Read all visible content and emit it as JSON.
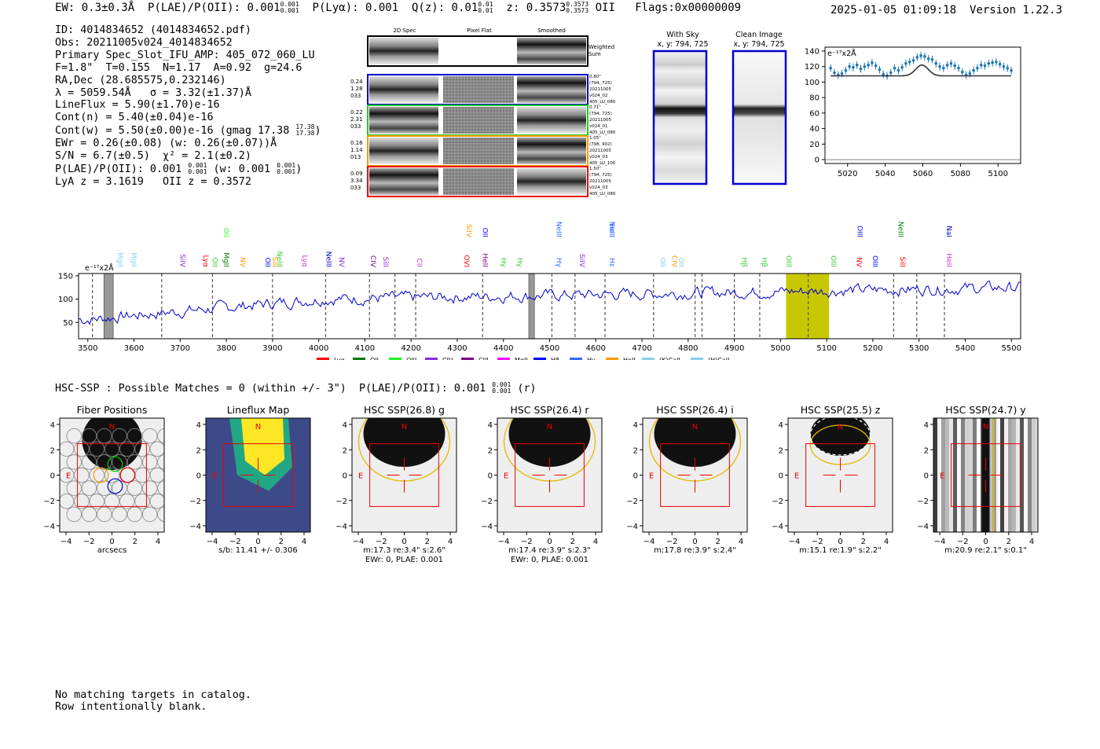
{
  "header": {
    "ew": "EW: 0.3±0.3Å",
    "plae_label": "P(LAE)/P(OII): 0.001",
    "plae_hi": "0.001",
    "plae_lo": "0.001",
    "plya": "P(Lyα): 0.001",
    "qz_label": "Q(z): 0.01",
    "qz_hi": "0.01",
    "qz_lo": "0.01",
    "z_label": "z: 0.3573",
    "z_hi": "0.3573",
    "z_lo": "0.3573",
    "z_line": "OII",
    "flags": "Flags:0x00000009",
    "datetime": "2025-01-05 01:09:18",
    "version": "Version 1.22.3"
  },
  "info": {
    "l1": "ID: 4014834652 (4014834652.pdf)",
    "l2": "Obs: 20211005v024_4014834652",
    "l3": "Primary Spec_Slot_IFU_AMP: 405_072_060_LU",
    "l4": "F=1.8\"  T=0.155  N=1.17  A=0.92  g=24.6",
    "l5": "RA,Dec (28.685575,0.232146)",
    "l6": "λ = 5059.54Å   σ = 3.32(±1.37)Å",
    "l7": "LineFlux = 5.90(±1.70)e-16",
    "l8": "Cont(n) = 5.40(±0.04)e-16",
    "l9": "Cont(w) = 5.50(±0.00)e-16 (gmag 17.38",
    "l9_hi": "17.38",
    "l9_lo": "17.38",
    "l9_end": ")",
    "l10": "EWr = 0.26(±0.08) (w: 0.26(±0.07))Å",
    "l11": "S/N = 6.7(±0.5)  χ² = 2.1(±0.2)",
    "l12a": "P(LAE)/P(OII): 0.001",
    "l12_hi": "0.001",
    "l12_lo": "0.001",
    "l12b": " (w: 0.001",
    "l12_hi2": "0.001",
    "l12_lo2": "0.001",
    "l12_end": ")",
    "l13": "LyA z = 3.1619   OII z = 0.3572"
  },
  "cutouts": {
    "col_2d": "2D Spec",
    "col_flat": "Pixel Flat",
    "col_smooth": "Smoothed",
    "weighted_label": "Weighted",
    "weighted_label2": "Sum",
    "rows": [
      {
        "l1": "0.24",
        "l2": "1.28",
        "l3": "033",
        "border": "#0000cc",
        "r1": "0.80\"",
        "r2": "(794, 725)",
        "r3": "20211005",
        "r4": "v024_02",
        "r5": "405_LU_080"
      },
      {
        "l1": "0.22",
        "l2": "2.31",
        "l3": "033",
        "border": "#22cc22",
        "r1": "0.71\"",
        "r2": "(794, 725)",
        "r3": "20211005",
        "r4": "v024_01",
        "r5": "405_LU_080"
      },
      {
        "l1": "0.16",
        "l2": "1.14",
        "l3": "013",
        "border": "#ff9900",
        "r1": "1.05\"",
        "r2": "(798, 902)",
        "r3": "20211005",
        "r4": "v024_03",
        "r5": "405_LU_100"
      },
      {
        "l1": "0.09",
        "l2": "3.34",
        "l3": "033",
        "border": "#ee0000",
        "r1": "1.50\"",
        "r2": "(794, 725)",
        "r3": "20211005",
        "r4": "v024_03",
        "r5": "405_LU_080"
      }
    ]
  },
  "sky": {
    "with_sky": "With Sky",
    "with_sky_xy": "x, y: 794, 725",
    "clean": "Clean Image",
    "clean_xy": "x, y: 794, 725"
  },
  "chart_data": [
    {
      "type": "line",
      "ylabel_top": "e⁻¹⁷x2Å",
      "xlim": [
        5008,
        5112
      ],
      "ylim": [
        -5,
        145
      ],
      "xticks": [
        5020,
        5040,
        5060,
        5080,
        5100
      ],
      "yticks": [
        0,
        20,
        40,
        60,
        80,
        100,
        120,
        140
      ],
      "series": [
        {
          "kind": "points-with-errors",
          "color": "#1f77b4",
          "x": [
            5011,
            5013,
            5015,
            5017,
            5019,
            5021,
            5023,
            5025,
            5027,
            5029,
            5031,
            5033,
            5035,
            5037,
            5039,
            5041,
            5043,
            5045,
            5047,
            5049,
            5051,
            5053,
            5055,
            5057,
            5059,
            5061,
            5063,
            5065,
            5067,
            5069,
            5071,
            5073,
            5075,
            5077,
            5079,
            5081,
            5083,
            5085,
            5087,
            5089,
            5091,
            5093,
            5095,
            5097,
            5099,
            5101,
            5103,
            5105,
            5107
          ],
          "y": [
            118,
            112,
            109,
            111,
            115,
            120,
            119,
            122,
            117,
            120,
            122,
            125,
            121,
            116,
            110,
            108,
            112,
            118,
            115,
            119,
            124,
            126,
            128,
            132,
            134,
            133,
            130,
            129,
            124,
            120,
            118,
            122,
            124,
            121,
            118,
            113,
            109,
            111,
            115,
            118,
            122,
            121,
            124,
            125,
            126,
            123,
            120,
            118,
            115
          ],
          "err": 5
        },
        {
          "kind": "model",
          "color": "#333333",
          "x0": 5059.54,
          "sigma": 3.32,
          "baseline": 108,
          "amp": 14
        }
      ]
    },
    {
      "type": "line",
      "ylabel_top": "e⁻¹⁷x2Å",
      "xlim": [
        3480,
        5520
      ],
      "ylim": [
        15,
        155
      ],
      "xticks": [
        3500,
        3600,
        3700,
        3800,
        3900,
        4000,
        4100,
        4200,
        4300,
        4400,
        4500,
        4600,
        4700,
        4800,
        4900,
        5000,
        5100,
        5200,
        5300,
        5400,
        5500
      ],
      "yticks": [
        50,
        100,
        150
      ],
      "highlight": {
        "x0": 5012,
        "x1": 5105,
        "color": "#c8c800"
      },
      "hatched": [
        {
          "x0": 3535,
          "x1": 3555
        },
        {
          "x0": 4455,
          "x1": 4467
        }
      ],
      "vlines": [
        3510,
        3660,
        3770,
        3900,
        4015,
        4110,
        4165,
        4210,
        4355,
        4505,
        4555,
        4620,
        4725,
        4815,
        4830,
        4900,
        4955,
        5060,
        5245,
        5295,
        5355
      ],
      "line_labels": [
        {
          "t": "MgII",
          "x": 3560,
          "c": "#87ceeb",
          "row": 2
        },
        {
          "t": "MgII",
          "x": 3590,
          "c": "#87ceeb",
          "row": 2
        },
        {
          "t": "SiIV",
          "x": 3695,
          "c": "#8a2be2",
          "row": 2
        },
        {
          "t": "Lyα",
          "x": 3745,
          "c": "#ff0000",
          "row": 2
        },
        {
          "t": "OII",
          "x": 3765,
          "c": "#33cc33",
          "row": 2
        },
        {
          "t": "MgII",
          "x": 3790,
          "c": "#008000",
          "row": 2
        },
        {
          "t": "OII",
          "x": 3790,
          "c": "#33ff33",
          "row": 0
        },
        {
          "t": "NV",
          "x": 3825,
          "c": "#ff9900",
          "row": 2
        },
        {
          "t": "OII",
          "x": 3880,
          "c": "#0000ff",
          "row": 2
        },
        {
          "t": "NeIII",
          "x": 3905,
          "c": "#33cc33",
          "row": 2
        },
        {
          "t": "SiII",
          "x": 3895,
          "c": "#ff9900",
          "row": 2
        },
        {
          "t": "Lyα",
          "x": 3960,
          "c": "#cc33cc",
          "row": 2
        },
        {
          "t": "NeIII",
          "x": 4012,
          "c": "#0000cc",
          "row": 2
        },
        {
          "t": "NV",
          "x": 4040,
          "c": "#8a2be2",
          "row": 2
        },
        {
          "t": "CIV",
          "x": 4108,
          "c": "#800080",
          "row": 2
        },
        {
          "t": "SiII",
          "x": 4135,
          "c": "#8a2be2",
          "row": 2
        },
        {
          "t": "CII",
          "x": 4208,
          "c": "#cc33cc",
          "row": 2
        },
        {
          "t": "OVI",
          "x": 4310,
          "c": "#ff0000",
          "row": 2
        },
        {
          "t": "SiIV",
          "x": 4315,
          "c": "#ff9900",
          "row": 0
        },
        {
          "t": "OII",
          "x": 4350,
          "c": "#0000ff",
          "row": 0
        },
        {
          "t": "HeII",
          "x": 4350,
          "c": "#800080",
          "row": 2
        },
        {
          "t": "Hγ",
          "x": 4390,
          "c": "#33cc33",
          "row": 2
        },
        {
          "t": "Hγ",
          "x": 4425,
          "c": "#33cc33",
          "row": 2
        },
        {
          "t": "NeIII",
          "x": 4510,
          "c": "#3366ff",
          "row": 0
        },
        {
          "t": "Hγ",
          "x": 4510,
          "c": "#3366ff",
          "row": 2
        },
        {
          "t": "SiIV",
          "x": 4560,
          "c": "#8a2be2",
          "row": 2
        },
        {
          "t": "HeII",
          "x": 4625,
          "c": "#3366ff",
          "row": 0
        },
        {
          "t": "NeIII",
          "x": 4625,
          "c": "#3366ff",
          "row": 0
        },
        {
          "t": "Hε",
          "x": 4625,
          "c": "#3366ff",
          "row": 2
        },
        {
          "t": "OII",
          "x": 4735,
          "c": "#87ceeb",
          "row": 2
        },
        {
          "t": "CIV",
          "x": 4760,
          "c": "#ff9900",
          "row": 2
        },
        {
          "t": "OII",
          "x": 4775,
          "c": "#87ceeb",
          "row": 2
        },
        {
          "t": "Hβ",
          "x": 4912,
          "c": "#33cc33",
          "row": 2
        },
        {
          "t": "Hβ",
          "x": 4955,
          "c": "#33cc33",
          "row": 2
        },
        {
          "t": "OIII",
          "x": 5008,
          "c": "#33cc33",
          "row": 2
        },
        {
          "t": "OIII",
          "x": 5105,
          "c": "#33cc33",
          "row": 2
        },
        {
          "t": "NV",
          "x": 5160,
          "c": "#ff0000",
          "row": 2
        },
        {
          "t": "OIII",
          "x": 5162,
          "c": "#0000ff",
          "row": 0
        },
        {
          "t": "OIII",
          "x": 5195,
          "c": "#0000ff",
          "row": 2
        },
        {
          "t": "NeIII",
          "x": 5250,
          "c": "#008000",
          "row": 0
        },
        {
          "t": "SiII",
          "x": 5255,
          "c": "#ff0000",
          "row": 2
        },
        {
          "t": "NaI",
          "x": 5355,
          "c": "#0000cc",
          "row": 0
        },
        {
          "t": "HeII",
          "x": 5355,
          "c": "#cc33cc",
          "row": 2
        }
      ],
      "legend": [
        {
          "name": "Lyα",
          "color": "#ff0000"
        },
        {
          "name": "OII",
          "color": "#007700"
        },
        {
          "name": "OIII",
          "color": "#22ee22"
        },
        {
          "name": "CIV",
          "color": "#8a2be2"
        },
        {
          "name": "CIII",
          "color": "#800080"
        },
        {
          "name": "MgII",
          "color": "#ff00ff"
        },
        {
          "name": "Hβ",
          "color": "#0000ff"
        },
        {
          "name": "Hγ",
          "color": "#3366ff"
        },
        {
          "name": "HeII",
          "color": "#ff9900"
        },
        {
          "name": "(K)CaII",
          "color": "#87ceeb"
        },
        {
          "name": "(H)CaII",
          "color": "#87ceeb"
        }
      ],
      "series": [
        {
          "color": "#0000cc",
          "seed": 7
        }
      ]
    }
  ],
  "hsc": {
    "prefix": "HSC-SSP : Possible Matches = 0 (within +/- 3\")  P(LAE)/P(OII): 0.001",
    "hi": "0.001",
    "lo": "0.001",
    "suffix": " (r)",
    "panels": [
      {
        "title": "Fiber Positions",
        "cap1": "arcsecs",
        "cap2": ""
      },
      {
        "title": "Lineflux Map",
        "cap1": "s/b: 11.41 +/- 0.306",
        "cap2": ""
      },
      {
        "title": "HSC SSP(26.8) g",
        "cap1": "m:17.3  re:3.4\"  s:2.6\"",
        "cap2": "EWr: 0, PLAE: 0.001"
      },
      {
        "title": "HSC SSP(26.4) r",
        "cap1": "m:17.4  re:3.9\"  s:2.3\"",
        "cap2": "EWr: 0, PLAE: 0.001"
      },
      {
        "title": "HSC SSP(26.4) i",
        "cap1": "m:17.8  re:3.9\"  s:2.4\"",
        "cap2": ""
      },
      {
        "title": "HSC SSP(25.5) z",
        "cap1": "m:15.1  re:1.9\"  s:2.2\"",
        "cap2": ""
      },
      {
        "title": "HSC SSP(24.7) y",
        "cap1": "m:20.9  re:2.1\"  s:0.1\"",
        "cap2": ""
      }
    ],
    "ticks": [
      "4",
      "2",
      "0",
      "−2",
      "−4"
    ],
    "xticks": [
      "−4",
      "−2",
      "0",
      "2",
      "4"
    ],
    "north": "N",
    "east": "E"
  },
  "footer": {
    "l1": "No matching targets in catalog.",
    "l2": "Row intentionally blank."
  }
}
